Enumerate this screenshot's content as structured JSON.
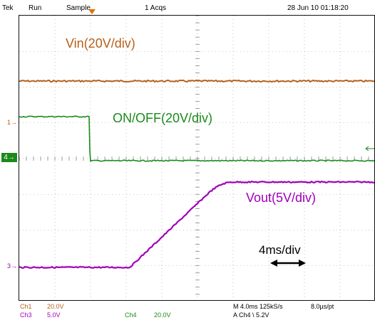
{
  "header": {
    "brand": "Tek",
    "run_state": "Run",
    "acq_mode": "Sample",
    "acquisitions": "1 Acqs",
    "datetime": "28 Jun 10 01:18:20"
  },
  "traces": {
    "vin_label": "Vin(20V/div)",
    "onoff_label": "ON/OFF(20V/div)",
    "vout_label": "Vout(5V/div)"
  },
  "timebase_annotation": "4ms/div",
  "channel_markers": {
    "ch1": "1",
    "ch4": "4",
    "ch3": "3"
  },
  "readout": {
    "ch1_name": "Ch1",
    "ch1_scale": "20.0V",
    "ch3_name": "Ch3",
    "ch3_scale": "5.0V",
    "ch4_name": "Ch4",
    "ch4_scale": "20.0V",
    "horizontal": "M 4.0ms 125kS/s",
    "sample_interval": "8.0µs/pt",
    "trigger": "A  Ch4  \\  5.2V"
  },
  "colors": {
    "ch1": "#b8601a",
    "ch3": "#a000b8",
    "ch4": "#1a8a1a",
    "trigger": "#e07000"
  }
}
